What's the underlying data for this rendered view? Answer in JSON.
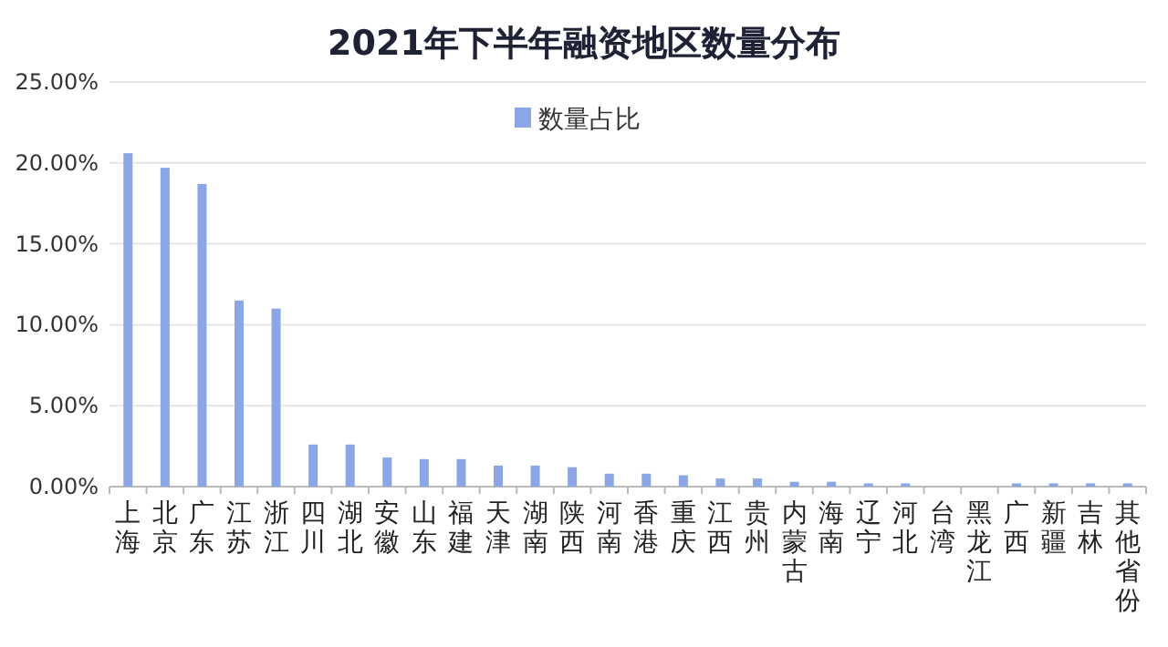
{
  "chart_data": {
    "type": "bar",
    "title": "2021年下半年融资地区数量分布",
    "categories": [
      "上海",
      "北京",
      "广东",
      "江苏",
      "浙江",
      "四川",
      "湖北",
      "安徽",
      "山东",
      "福建",
      "天津",
      "湖南",
      "陕西",
      "河南",
      "香港",
      "重庆",
      "江西",
      "贵州",
      "内蒙古",
      "海南",
      "辽宁",
      "河北",
      "台湾",
      "黑龙江",
      "广西",
      "新疆",
      "吉林",
      "其他省份"
    ],
    "series": [
      {
        "name": "数量占比",
        "color": "#8aa6e6",
        "values": [
          20.6,
          19.7,
          18.7,
          11.5,
          11.0,
          2.6,
          2.6,
          1.8,
          1.7,
          1.7,
          1.3,
          1.3,
          1.2,
          0.8,
          0.8,
          0.7,
          0.5,
          0.5,
          0.3,
          0.3,
          0.2,
          0.2,
          null,
          null,
          0.2,
          0.2,
          0.2,
          0.2
        ]
      }
    ],
    "ylim": [
      0,
      25
    ],
    "yticks": [
      {
        "value": 0,
        "label": "0.00%"
      },
      {
        "value": 5,
        "label": "5.00%"
      },
      {
        "value": 10,
        "label": "10.00%"
      },
      {
        "value": 15,
        "label": "15.00%"
      },
      {
        "value": 20,
        "label": "20.00%"
      },
      {
        "value": 25,
        "label": "25.00%"
      }
    ],
    "grid": "y",
    "legend": "top"
  }
}
